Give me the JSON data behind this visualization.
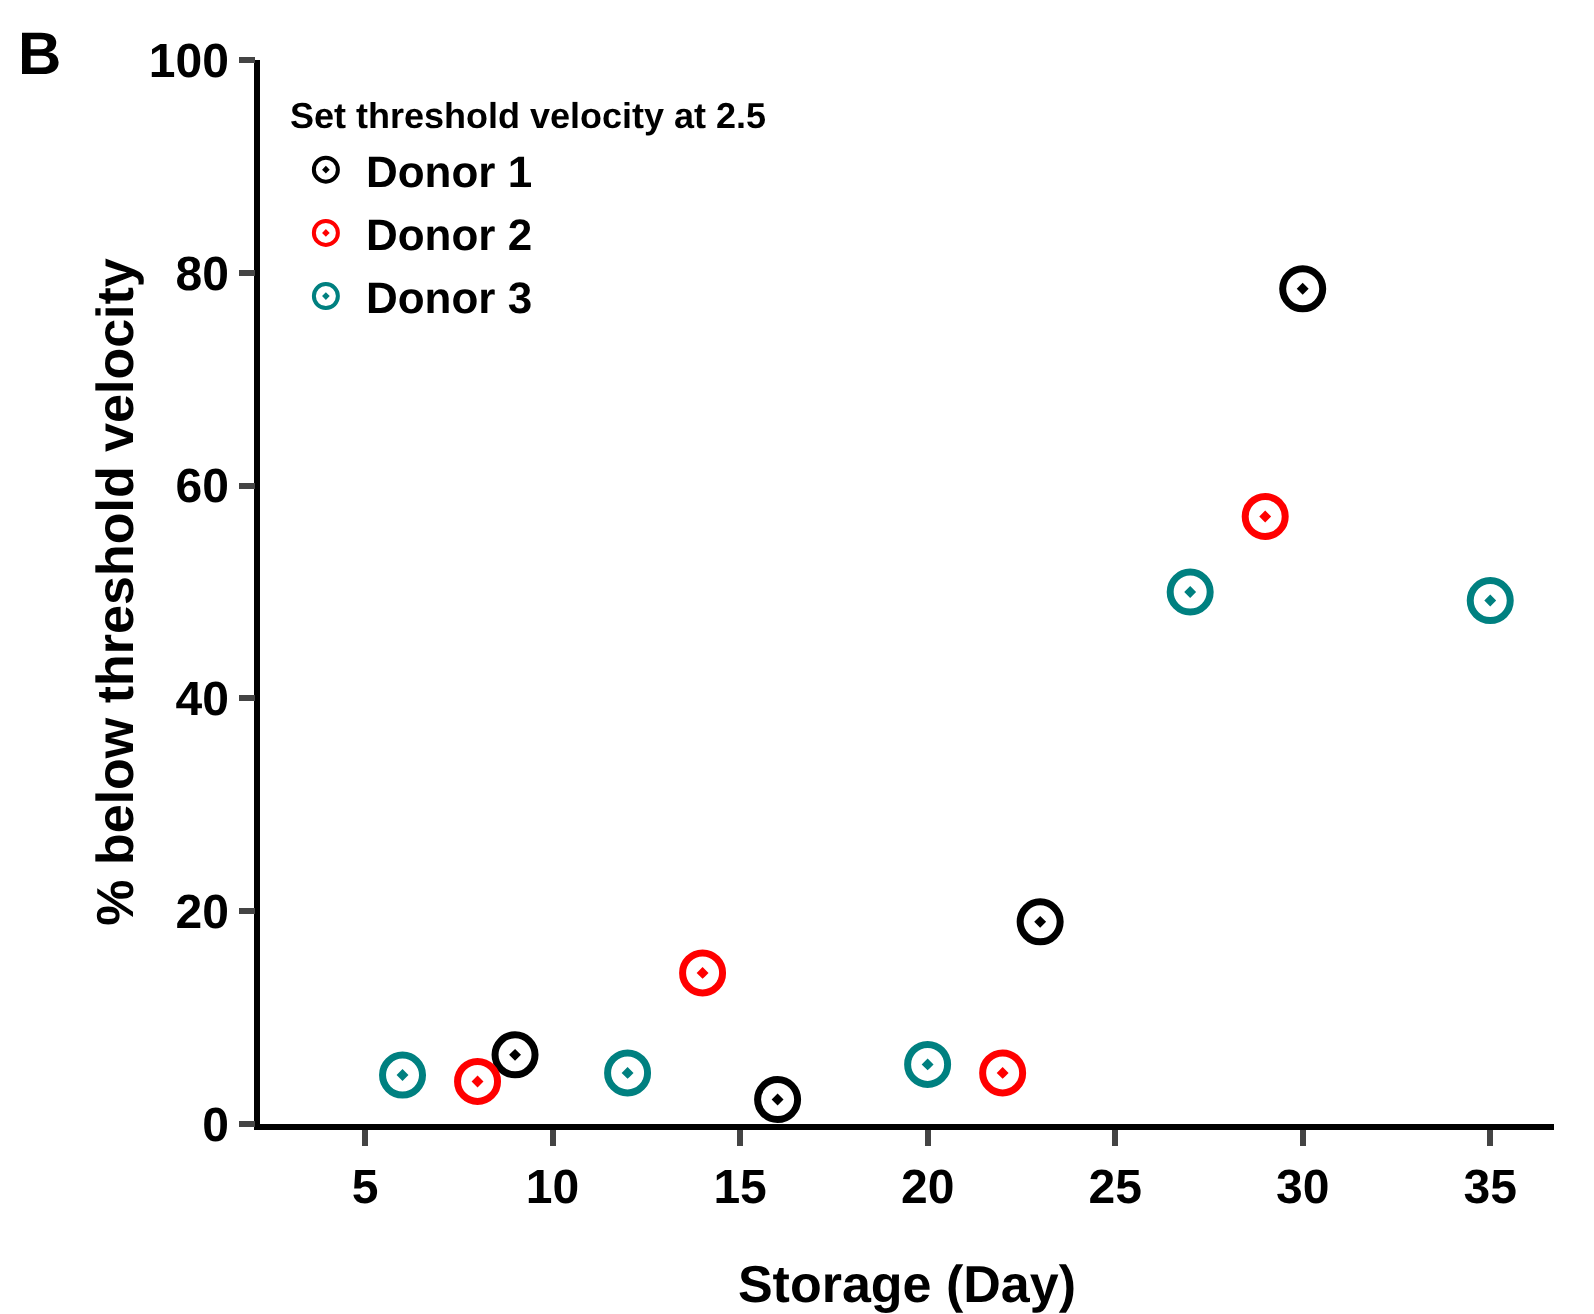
{
  "chart_data": {
    "type": "scatter",
    "xlabel": "Storage (Day)",
    "ylabel": "% below threshold velocity",
    "legend_title": "Set threshold velocity at 2.5",
    "annotations": [
      "B"
    ],
    "xlim": [
      2.2,
      36.7
    ],
    "xticks": [
      5,
      10,
      15,
      20,
      25,
      30,
      35
    ],
    "ylim": [
      0,
      100
    ],
    "yticks": [
      0,
      20,
      40,
      60,
      80,
      100
    ],
    "grid": false,
    "legend": "top left",
    "marker": "circle",
    "series": [
      {
        "name": "Donor 1",
        "color": "#000000",
        "x": [
          9,
          16,
          23,
          30
        ],
        "values": [
          6.5,
          2.3,
          19,
          78.5
        ]
      },
      {
        "name": "Donor 2",
        "color": "#ff0000",
        "x": [
          8,
          14,
          22,
          29
        ],
        "values": [
          4,
          14.2,
          4.8,
          57.1
        ]
      },
      {
        "name": "Donor 3",
        "color": "#008080",
        "x": [
          6,
          12,
          20,
          27,
          35
        ],
        "values": [
          4.6,
          4.8,
          5.6,
          50,
          49.2
        ]
      }
    ]
  }
}
